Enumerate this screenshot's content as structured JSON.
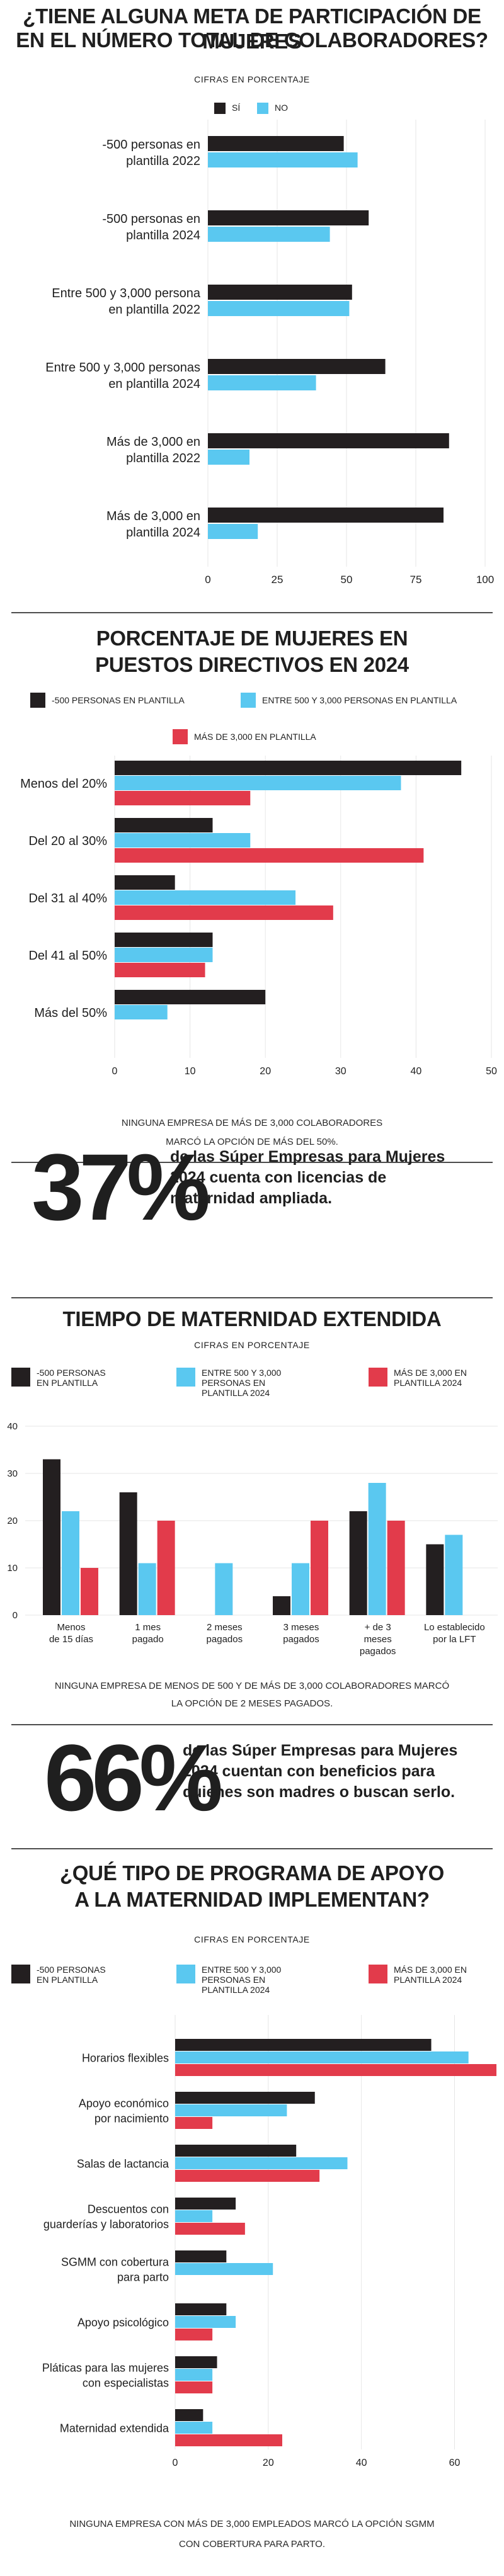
{
  "colors": {
    "dark": "#231f20",
    "blue": "#5ac8f0",
    "red": "#e23b4b",
    "grid": "#e6e6e6"
  },
  "sec1": {
    "title_l1": "¿TIENE ALGUNA META DE PARTICIPACIÓN DE MUJERES",
    "title_l2": "EN EL NÚMERO TOTAL DE COLABORADORES?",
    "subtitle": "CIFRAS EN PORCENTAJE",
    "legend": [
      "SÍ",
      "NO"
    ]
  },
  "sec2": {
    "title_l1": "PORCENTAJE DE MUJERES EN",
    "title_l2": "PUESTOS DIRECTIVOS EN 2024",
    "legend": [
      "-500 PERSONAS EN PLANTILLA",
      "ENTRE 500 Y 3,000 PERSONAS EN PLANTILLA",
      "MÁS DE 3,000 EN PLANTILLA"
    ],
    "note_l1": "NINGUNA EMPRESA DE MÁS DE 3,000 COLABORADORES",
    "note_l2": "MARCÓ LA OPCIÓN DE MÁS DEL 50%."
  },
  "stat1": {
    "value": "37%",
    "text_l1": "de las Súper Empresas para Mujeres",
    "text_l2": "2024 cuenta con licencias de",
    "text_l3": "maternidad ampliada."
  },
  "sec3": {
    "title": "TIEMPO DE MATERNIDAD EXTENDIDA",
    "subtitle": "CIFRAS EN PORCENTAJE",
    "legend": [
      [
        "-500 PERSONAS",
        "EN PLANTILLA"
      ],
      [
        "ENTRE 500 Y 3,000",
        "PERSONAS EN",
        "PLANTILLA 2024"
      ],
      [
        "MÁS DE 3,000 EN",
        "PLANTILLA 2024"
      ]
    ],
    "note_l1": "NINGUNA EMPRESA DE MENOS DE 500 Y DE MÁS DE 3,000 COLABORADORES MARCÓ",
    "note_l2": "LA OPCIÓN DE 2 MESES PAGADOS."
  },
  "stat2": {
    "value": "66%",
    "text_l1": "de las Súper Empresas para Mujeres",
    "text_l2": "2024 cuentan con beneficios para",
    "text_l3": "quienes son madres o buscan serlo."
  },
  "sec4": {
    "title_l1": "¿QUÉ TIPO DE PROGRAMA DE APOYO",
    "title_l2": "A LA MATERNIDAD IMPLEMENTAN?",
    "subtitle": "CIFRAS EN PORCENTAJE",
    "legend": [
      [
        "-500 PERSONAS",
        "EN PLANTILLA"
      ],
      [
        "ENTRE 500 Y 3,000",
        "PERSONAS EN",
        "PLANTILLA 2024"
      ],
      [
        "MÁS DE 3,000 EN",
        "PLANTILLA 2024"
      ]
    ],
    "note_l1": "NINGUNA EMPRESA CON MÁS DE 3,000 EMPLEADOS MARCÓ LA OPCIÓN SGMM",
    "note_l2": "CON COBERTURA PARA PARTO."
  },
  "chart_data": [
    {
      "type": "bar",
      "orientation": "horizontal",
      "title": "¿TIENE ALGUNA META DE PARTICIPACIÓN DE MUJERES EN EL NÚMERO TOTAL DE COLABORADORES?",
      "categories": [
        [
          "-500 personas en",
          "plantilla 2022"
        ],
        [
          "-500 personas en",
          "plantilla 2024"
        ],
        [
          "Entre 500 y 3,000 persona",
          "en plantilla 2022"
        ],
        [
          "Entre 500 y 3,000 personas",
          "en plantilla 2024"
        ],
        [
          "Más de 3,000 en",
          "plantilla 2022"
        ],
        [
          "Más de 3,000 en",
          "plantilla 2024"
        ]
      ],
      "series": [
        {
          "name": "SÍ",
          "values": [
            49,
            58,
            52,
            64,
            87,
            85
          ]
        },
        {
          "name": "NO",
          "values": [
            54,
            44,
            51,
            39,
            15,
            18
          ]
        }
      ],
      "xlim": [
        0,
        100
      ],
      "xticks": [
        0,
        25,
        50,
        75,
        100
      ]
    },
    {
      "type": "bar",
      "orientation": "horizontal",
      "title": "PORCENTAJE DE MUJERES EN PUESTOS DIRECTIVOS EN 2024",
      "categories": [
        "Menos del 20%",
        "Del 20 al 30%",
        "Del 31 al 40%",
        "Del 41 al 50%",
        "Más del 50%"
      ],
      "series": [
        {
          "name": "-500 PERSONAS EN PLANTILLA",
          "values": [
            46,
            13,
            8,
            13,
            20
          ]
        },
        {
          "name": "ENTRE 500 Y 3,000 PERSONAS EN PLANTILLA",
          "values": [
            38,
            18,
            24,
            13,
            7
          ]
        },
        {
          "name": "MÁS DE 3,000 EN PLANTILLA",
          "values": [
            18,
            41,
            29,
            12,
            0
          ]
        }
      ],
      "xlim": [
        0,
        50
      ],
      "xticks": [
        0,
        10,
        20,
        30,
        40,
        50
      ]
    },
    {
      "type": "bar",
      "orientation": "vertical",
      "title": "TIEMPO DE MATERNIDAD EXTENDIDA",
      "categories": [
        [
          "Menos",
          "de 15 días"
        ],
        [
          "1 mes",
          "pagado"
        ],
        [
          "2 meses",
          "pagados"
        ],
        [
          "3 meses",
          "pagados"
        ],
        [
          "+ de 3",
          "meses",
          "pagados"
        ],
        [
          "Lo establecido",
          "por la LFT"
        ]
      ],
      "series": [
        {
          "name": "-500 PERSONAS EN PLANTILLA",
          "values": [
            33,
            26,
            0,
            4,
            22,
            15
          ]
        },
        {
          "name": "ENTRE 500 Y 3,000 PERSONAS EN PLANTILLA 2024",
          "values": [
            22,
            11,
            11,
            11,
            28,
            17
          ]
        },
        {
          "name": "MÁS DE 3,000 EN PLANTILLA 2024",
          "values": [
            10,
            20,
            0,
            20,
            20,
            0
          ]
        }
      ],
      "ylim": [
        0,
        40
      ],
      "yticks": [
        0,
        10,
        20,
        30,
        40
      ]
    },
    {
      "type": "bar",
      "orientation": "horizontal",
      "title": "¿QUÉ TIPO DE PROGRAMA DE APOYO A LA MATERNIDAD IMPLEMENTAN?",
      "categories": [
        [
          "Horarios flexibles"
        ],
        [
          "Apoyo económico",
          "por nacimiento"
        ],
        [
          "Salas de lactancia"
        ],
        [
          "Descuentos con",
          "guarderías y laboratorios"
        ],
        [
          "SGMM con cobertura",
          "para parto"
        ],
        [
          "Apoyo psicológico"
        ],
        [
          "Pláticas para las mujeres",
          "con especialistas"
        ],
        [
          "Maternidad extendida"
        ]
      ],
      "series": [
        {
          "name": "-500 PERSONAS EN PLANTILLA",
          "values": [
            55,
            30,
            26,
            13,
            11,
            11,
            9,
            6
          ]
        },
        {
          "name": "ENTRE 500 Y 3,000 PERSONAS EN PLANTILLA 2024",
          "values": [
            63,
            24,
            37,
            8,
            21,
            13,
            8,
            8
          ]
        },
        {
          "name": "MÁS DE 3,000 EN PLANTILLA 2024",
          "values": [
            69,
            8,
            31,
            15,
            0,
            8,
            8,
            23
          ]
        }
      ],
      "xlim": [
        0,
        69
      ],
      "xticks": [
        0,
        20,
        40,
        60
      ]
    }
  ]
}
